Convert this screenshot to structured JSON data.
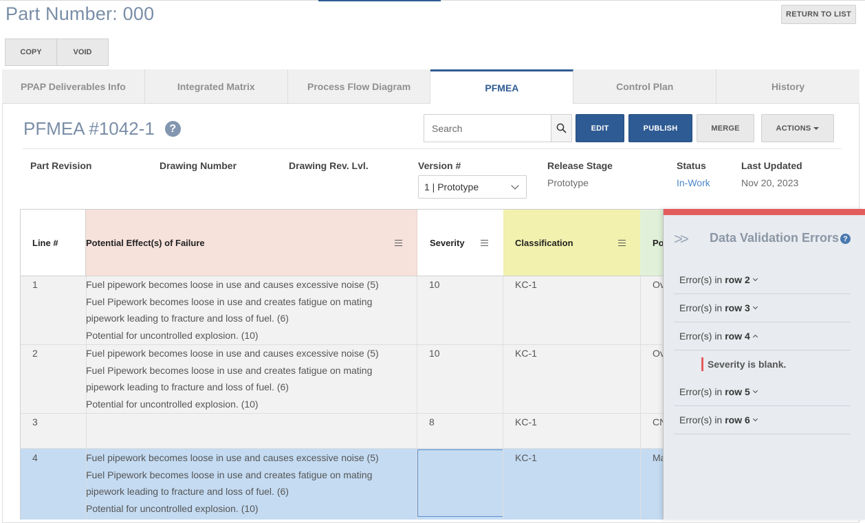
{
  "header": {
    "title": "Part Number: 000",
    "return_label": "RETURN TO LIST",
    "copy_label": "COPY",
    "void_label": "VOID"
  },
  "tabs": [
    {
      "label": "PPAP Deliverables Info",
      "active": false
    },
    {
      "label": "Integrated Matrix",
      "active": false
    },
    {
      "label": "Process Flow Diagram",
      "active": false
    },
    {
      "label": "PFMEA",
      "active": true
    },
    {
      "label": "Control Plan",
      "active": false
    },
    {
      "label": "History",
      "active": false
    }
  ],
  "pfmea": {
    "title": "PFMEA #1042-1",
    "help_glyph": "?",
    "search_placeholder": "Search",
    "edit_label": "EDIT",
    "publish_label": "PUBLISH",
    "merge_label": "MERGE",
    "actions_label": "ACTIONS"
  },
  "meta": {
    "part_revision_label": "Part Revision",
    "drawing_number_label": "Drawing Number",
    "drawing_rev_label": "Drawing Rev. Lvl.",
    "version_label": "Version #",
    "version_value": "1 | Prototype",
    "release_stage_label": "Release Stage",
    "release_stage_value": "Prototype",
    "status_label": "Status",
    "status_value": "In-Work",
    "last_updated_label": "Last Updated",
    "last_updated_value": "Nov 20, 2023"
  },
  "grid": {
    "columns": {
      "line": "Line #",
      "effect": "Potential Effect(s) of Failure",
      "severity": "Severity",
      "classification": "Classification",
      "next": "Pot"
    },
    "rows": [
      {
        "line": "1",
        "effects": [
          "Fuel pipework becomes loose in use and causes excessive noise (5)",
          "Fuel Pipework becomes loose in use and creates fatigue on mating",
          "pipework leading to fracture and loss of fuel. (6)",
          "Potential for uncontrolled explosion. (10)"
        ],
        "severity": "10",
        "classification": "KC-1",
        "next": "Ov"
      },
      {
        "line": "2",
        "effects": [
          "Fuel pipework becomes loose in use and causes excessive noise (5)",
          "Fuel Pipework becomes loose in use and creates fatigue on mating",
          "pipework leading to fracture and loss of fuel. (6)",
          "Potential for uncontrolled explosion. (10)"
        ],
        "severity": "10",
        "classification": "KC-1",
        "next": "Ov"
      },
      {
        "line": "3",
        "effects": [],
        "severity": "8",
        "classification": "KC-1",
        "next": "CN"
      },
      {
        "line": "4",
        "effects": [
          "Fuel pipework becomes loose in use and causes excessive noise (5)",
          "Fuel Pipework becomes loose in use and creates fatigue on mating",
          "pipework leading to fracture and loss of fuel. (6)",
          "Potential for uncontrolled explosion. (10)"
        ],
        "severity": "",
        "classification": "KC-1",
        "next": "Ma"
      }
    ]
  },
  "validation": {
    "arrows": ">>",
    "title": "Data Validation Errors",
    "help_glyph": "?",
    "prefix": "Error(s) in",
    "errors": [
      {
        "row_label": "row 2",
        "expanded": false
      },
      {
        "row_label": "row 3",
        "expanded": false
      },
      {
        "row_label": "row 4",
        "expanded": true,
        "message": "Severity is blank."
      },
      {
        "row_label": "row 5",
        "expanded": false
      },
      {
        "row_label": "row 6",
        "expanded": false
      }
    ]
  },
  "colors": {
    "brand": "#2e5b93",
    "effect_header_bg": "#f6e1db",
    "classification_header_bg": "#f2f1ae",
    "next_header_bg": "#e1f1d9",
    "selected_row": "#c4dbf2",
    "error_accent": "#e45d5d"
  }
}
